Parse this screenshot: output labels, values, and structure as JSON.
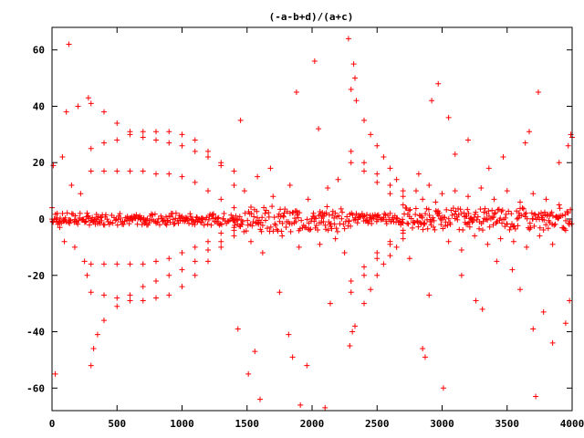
{
  "chart_data": {
    "type": "scatter",
    "title": "(-a-b+d)/(a+c)",
    "xlabel": "",
    "ylabel": "",
    "xlim": [
      0,
      4000
    ],
    "ylim": [
      -68,
      68
    ],
    "x_ticks": [
      "0",
      "500",
      "1000",
      "1500",
      "2000",
      "2500",
      "3000",
      "3500",
      "4000"
    ],
    "x_tick_values": [
      0,
      500,
      1000,
      1500,
      2000,
      2500,
      3000,
      3500,
      4000
    ],
    "y_ticks": [
      "60",
      "40",
      "20",
      "0",
      "-20",
      "-40",
      "-60"
    ],
    "y_tick_values": [
      60,
      40,
      20,
      0,
      -20,
      -40,
      -60
    ],
    "grid": false,
    "legend": "none",
    "marker": "plus",
    "series": [
      {
        "color": "#ff0000",
        "points": [
          [
            0,
            4
          ],
          [
            10,
            19
          ],
          [
            25,
            -55
          ],
          [
            40,
            2
          ],
          [
            60,
            -3
          ],
          [
            80,
            22
          ],
          [
            95,
            -8
          ],
          [
            110,
            38
          ],
          [
            130,
            62
          ],
          [
            150,
            12
          ],
          [
            175,
            -10
          ],
          [
            200,
            40
          ],
          [
            220,
            9
          ],
          [
            250,
            -15
          ],
          [
            270,
            -20
          ],
          [
            280,
            43
          ],
          [
            300,
            -52
          ],
          [
            320,
            -46
          ],
          [
            350,
            -41
          ],
          [
            400,
            -36
          ],
          [
            500,
            -31
          ],
          [
            600,
            -27
          ],
          [
            700,
            -24
          ],
          [
            800,
            -22
          ],
          [
            900,
            -20
          ],
          [
            1000,
            -18
          ],
          [
            1100,
            -15
          ],
          [
            1200,
            -11
          ],
          [
            1300,
            -8
          ],
          [
            1400,
            -4
          ],
          [
            300,
            41
          ],
          [
            400,
            38
          ],
          [
            500,
            34
          ],
          [
            600,
            31
          ],
          [
            700,
            29
          ],
          [
            800,
            28
          ],
          [
            900,
            27
          ],
          [
            1000,
            26
          ],
          [
            1100,
            24
          ],
          [
            1200,
            22
          ],
          [
            1300,
            20
          ],
          [
            1400,
            17
          ],
          [
            300,
            25
          ],
          [
            400,
            27
          ],
          [
            500,
            28
          ],
          [
            600,
            30
          ],
          [
            700,
            31
          ],
          [
            800,
            31
          ],
          [
            900,
            31
          ],
          [
            1000,
            30
          ],
          [
            1100,
            28
          ],
          [
            1200,
            24
          ],
          [
            1300,
            19
          ],
          [
            1400,
            12
          ],
          [
            300,
            17
          ],
          [
            400,
            17
          ],
          [
            500,
            17
          ],
          [
            600,
            17
          ],
          [
            700,
            17
          ],
          [
            800,
            16
          ],
          [
            900,
            16
          ],
          [
            1000,
            15
          ],
          [
            1100,
            13
          ],
          [
            1200,
            10
          ],
          [
            1300,
            7
          ],
          [
            1400,
            4
          ],
          [
            300,
            -16
          ],
          [
            400,
            -16
          ],
          [
            500,
            -16
          ],
          [
            600,
            -16
          ],
          [
            700,
            -16
          ],
          [
            800,
            -15
          ],
          [
            900,
            -14
          ],
          [
            1000,
            -12
          ],
          [
            1100,
            -10
          ],
          [
            1200,
            -8
          ],
          [
            1300,
            -5
          ],
          [
            1400,
            -3
          ],
          [
            300,
            -26
          ],
          [
            400,
            -27
          ],
          [
            500,
            -28
          ],
          [
            600,
            -29
          ],
          [
            700,
            -29
          ],
          [
            800,
            -28
          ],
          [
            900,
            -27
          ],
          [
            1000,
            -24
          ],
          [
            1100,
            -20
          ],
          [
            1200,
            -15
          ],
          [
            1300,
            -10
          ],
          [
            1400,
            -6
          ],
          [
            1450,
            35
          ],
          [
            1430,
            -39
          ],
          [
            1510,
            -55
          ],
          [
            1560,
            -47
          ],
          [
            1600,
            -64
          ],
          [
            1680,
            18
          ],
          [
            1750,
            -26
          ],
          [
            1820,
            -41
          ],
          [
            1850,
            -49
          ],
          [
            1880,
            45
          ],
          [
            1910,
            -66
          ],
          [
            1960,
            -52
          ],
          [
            2020,
            56
          ],
          [
            2050,
            32
          ],
          [
            2100,
            -67
          ],
          [
            2140,
            -30
          ],
          [
            2200,
            14
          ],
          [
            2250,
            -12
          ],
          [
            1480,
            10
          ],
          [
            1530,
            -8
          ],
          [
            1580,
            15
          ],
          [
            1620,
            -12
          ],
          [
            1700,
            8
          ],
          [
            1770,
            -6
          ],
          [
            1830,
            12
          ],
          [
            1900,
            -10
          ],
          [
            1970,
            7
          ],
          [
            2060,
            -9
          ],
          [
            2120,
            11
          ],
          [
            2180,
            -7
          ],
          [
            2280,
            64
          ],
          [
            2320,
            55
          ],
          [
            2330,
            50
          ],
          [
            2300,
            46
          ],
          [
            2290,
            -45
          ],
          [
            2310,
            -40
          ],
          [
            2300,
            24
          ],
          [
            2400,
            20
          ],
          [
            2500,
            16
          ],
          [
            2600,
            12
          ],
          [
            2700,
            8
          ],
          [
            2300,
            20
          ],
          [
            2400,
            17
          ],
          [
            2500,
            13
          ],
          [
            2600,
            9
          ],
          [
            2700,
            5
          ],
          [
            2300,
            -26
          ],
          [
            2400,
            -20
          ],
          [
            2500,
            -14
          ],
          [
            2600,
            -9
          ],
          [
            2700,
            -5
          ],
          [
            2300,
            -22
          ],
          [
            2400,
            -17
          ],
          [
            2500,
            -12
          ],
          [
            2600,
            -8
          ],
          [
            2700,
            -4
          ],
          [
            2340,
            42
          ],
          [
            2400,
            35
          ],
          [
            2450,
            30
          ],
          [
            2500,
            26
          ],
          [
            2550,
            22
          ],
          [
            2600,
            18
          ],
          [
            2650,
            14
          ],
          [
            2700,
            10
          ],
          [
            2330,
            -38
          ],
          [
            2400,
            -30
          ],
          [
            2450,
            -25
          ],
          [
            2500,
            -20
          ],
          [
            2550,
            -16
          ],
          [
            2600,
            -13
          ],
          [
            2650,
            -10
          ],
          [
            2700,
            -7
          ],
          [
            2800,
            10
          ],
          [
            2850,
            7
          ],
          [
            2900,
            12
          ],
          [
            2950,
            6
          ],
          [
            3000,
            9
          ],
          [
            3050,
            -8
          ],
          [
            3100,
            10
          ],
          [
            3150,
            -11
          ],
          [
            3200,
            8
          ],
          [
            3250,
            -6
          ],
          [
            3300,
            11
          ],
          [
            3350,
            -9
          ],
          [
            3400,
            7
          ],
          [
            3450,
            -7
          ],
          [
            3500,
            10
          ],
          [
            3550,
            -8
          ],
          [
            3600,
            6
          ],
          [
            3650,
            -10
          ],
          [
            3700,
            9
          ],
          [
            3750,
            -6
          ],
          [
            3800,
            7
          ],
          [
            3850,
            -9
          ],
          [
            3900,
            5
          ],
          [
            3950,
            -4
          ],
          [
            2750,
            -14
          ],
          [
            2820,
            16
          ],
          [
            2850,
            -46
          ],
          [
            2870,
            -49
          ],
          [
            2900,
            -27
          ],
          [
            2920,
            42
          ],
          [
            2970,
            48
          ],
          [
            3010,
            -60
          ],
          [
            3050,
            36
          ],
          [
            3100,
            23
          ],
          [
            3150,
            -20
          ],
          [
            3200,
            28
          ],
          [
            3260,
            -29
          ],
          [
            3310,
            -32
          ],
          [
            3360,
            18
          ],
          [
            3420,
            -15
          ],
          [
            3470,
            22
          ],
          [
            3540,
            -18
          ],
          [
            3600,
            -25
          ],
          [
            3640,
            27
          ],
          [
            3670,
            31
          ],
          [
            3700,
            -39
          ],
          [
            3720,
            -63
          ],
          [
            3740,
            45
          ],
          [
            3780,
            -33
          ],
          [
            3850,
            -44
          ],
          [
            3900,
            20
          ],
          [
            3950,
            -37
          ],
          [
            3970,
            26
          ],
          [
            3980,
            -29
          ],
          [
            3990,
            30
          ],
          [
            4000,
            29
          ]
        ]
      }
    ]
  }
}
